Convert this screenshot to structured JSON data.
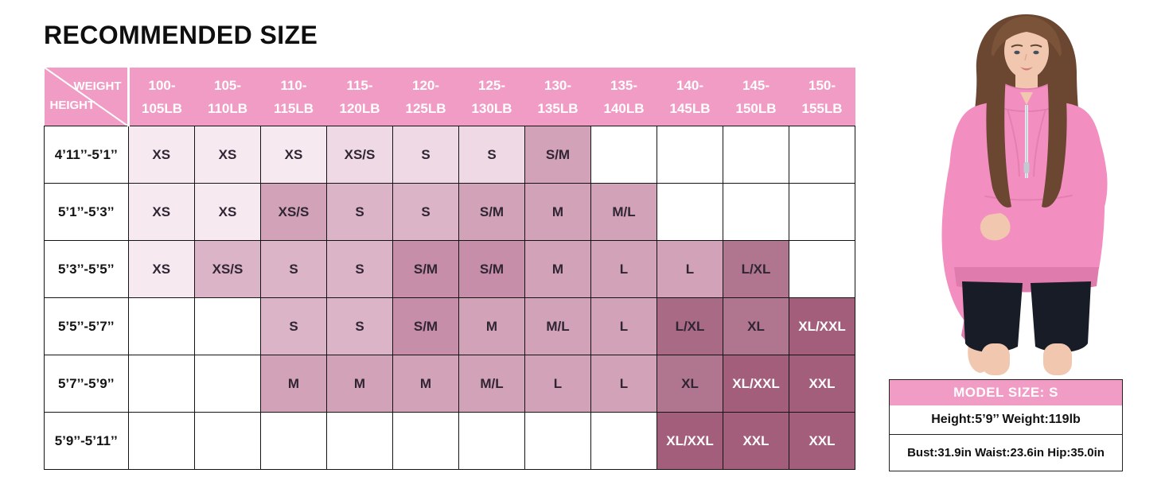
{
  "title": "RECOMMENDED SIZE",
  "table": {
    "corner": {
      "weight_label": "WEIGHT",
      "height_label": "HEIGHT"
    },
    "header_bg": "#f09cc5",
    "border_color": "#141414",
    "columns": [
      {
        "l1": "100-",
        "l2": "105LB"
      },
      {
        "l1": "105-",
        "l2": "110LB"
      },
      {
        "l1": "110-",
        "l2": "115LB"
      },
      {
        "l1": "115-",
        "l2": "120LB"
      },
      {
        "l1": "120-",
        "l2": "125LB"
      },
      {
        "l1": "125-",
        "l2": "130LB"
      },
      {
        "l1": "130-",
        "l2": "135LB"
      },
      {
        "l1": "135-",
        "l2": "140LB"
      },
      {
        "l1": "140-",
        "l2": "145LB"
      },
      {
        "l1": "145-",
        "l2": "150LB"
      },
      {
        "l1": "150-",
        "l2": "155LB"
      }
    ],
    "palette": {
      "0": "#ffffff",
      "1": "#f7e9f0",
      "2": "#eed9e4",
      "3": "#dcb4c8",
      "4": "#d2a2b8",
      "5": "#c78ea9",
      "6": "#b1768f",
      "7": "#a96a86",
      "8": "#a35e7b"
    },
    "dark_text": "#2f2533",
    "light_text": "#ffffff",
    "white_text_levels": [
      8
    ],
    "rows": [
      {
        "h": "4’11’’-5’1’’",
        "cells": [
          {
            "s": "XS",
            "v": 1
          },
          {
            "s": "XS",
            "v": 1
          },
          {
            "s": "XS",
            "v": 1
          },
          {
            "s": "XS/S",
            "v": 2
          },
          {
            "s": "S",
            "v": 2
          },
          {
            "s": "S",
            "v": 2
          },
          {
            "s": "S/M",
            "v": 4
          },
          {
            "s": "",
            "v": 0
          },
          {
            "s": "",
            "v": 0
          },
          {
            "s": "",
            "v": 0
          },
          {
            "s": "",
            "v": 0
          }
        ]
      },
      {
        "h": "5’1’’-5’3’’",
        "cells": [
          {
            "s": "XS",
            "v": 1
          },
          {
            "s": "XS",
            "v": 1
          },
          {
            "s": "XS/S",
            "v": 4
          },
          {
            "s": "S",
            "v": 3
          },
          {
            "s": "S",
            "v": 3
          },
          {
            "s": "S/M",
            "v": 4
          },
          {
            "s": "M",
            "v": 4
          },
          {
            "s": "M/L",
            "v": 4
          },
          {
            "s": "",
            "v": 0
          },
          {
            "s": "",
            "v": 0
          },
          {
            "s": "",
            "v": 0
          }
        ]
      },
      {
        "h": "5’3’’-5’5’’",
        "cells": [
          {
            "s": "XS",
            "v": 1
          },
          {
            "s": "XS/S",
            "v": 3
          },
          {
            "s": "S",
            "v": 3
          },
          {
            "s": "S",
            "v": 3
          },
          {
            "s": "S/M",
            "v": 5
          },
          {
            "s": "S/M",
            "v": 5
          },
          {
            "s": "M",
            "v": 4
          },
          {
            "s": "L",
            "v": 4
          },
          {
            "s": "L",
            "v": 4
          },
          {
            "s": "L/XL",
            "v": 6
          },
          {
            "s": "",
            "v": 0
          }
        ]
      },
      {
        "h": "5’5’’-5’7’’",
        "cells": [
          {
            "s": "",
            "v": 0
          },
          {
            "s": "",
            "v": 0
          },
          {
            "s": "S",
            "v": 3
          },
          {
            "s": "S",
            "v": 3
          },
          {
            "s": "S/M",
            "v": 5
          },
          {
            "s": "M",
            "v": 4
          },
          {
            "s": "M/L",
            "v": 4
          },
          {
            "s": "L",
            "v": 4
          },
          {
            "s": "L/XL",
            "v": 7
          },
          {
            "s": "XL",
            "v": 6
          },
          {
            "s": "XL/XXL",
            "v": 8
          }
        ]
      },
      {
        "h": "5’7’’-5’9’’",
        "cells": [
          {
            "s": "",
            "v": 0
          },
          {
            "s": "",
            "v": 0
          },
          {
            "s": "M",
            "v": 4
          },
          {
            "s": "M",
            "v": 4
          },
          {
            "s": "M",
            "v": 4
          },
          {
            "s": "M/L",
            "v": 4
          },
          {
            "s": "L",
            "v": 4
          },
          {
            "s": "L",
            "v": 4
          },
          {
            "s": "XL",
            "v": 6
          },
          {
            "s": "XL/XXL",
            "v": 8
          },
          {
            "s": "XXL",
            "v": 8
          }
        ]
      },
      {
        "h": "5’9’’-5’11’’",
        "cells": [
          {
            "s": "",
            "v": 0
          },
          {
            "s": "",
            "v": 0
          },
          {
            "s": "",
            "v": 0
          },
          {
            "s": "",
            "v": 0
          },
          {
            "s": "",
            "v": 0
          },
          {
            "s": "",
            "v": 0
          },
          {
            "s": "",
            "v": 0
          },
          {
            "s": "",
            "v": 0
          },
          {
            "s": "XL/XXL",
            "v": 8
          },
          {
            "s": "XXL",
            "v": 8
          },
          {
            "s": "XXL",
            "v": 8
          }
        ]
      }
    ]
  },
  "model_box": {
    "header": "MODEL SIZE: S",
    "line1": "Height:5’9’’ Weight:119lb",
    "line2": "Bust:31.9in Waist:23.6in Hip:35.0in",
    "header_bg": "#f09cc5"
  },
  "model_photo": {
    "subject": "model-wearing-pink-half-zip-oversized-sweatshirt-and-black-shorts",
    "colors": {
      "sweatshirt": "#f28fc0",
      "sweatshirt_dark": "#e07bad",
      "shorts": "#171c26",
      "skin": "#f2c7b0",
      "hair": "#6b4631"
    }
  }
}
